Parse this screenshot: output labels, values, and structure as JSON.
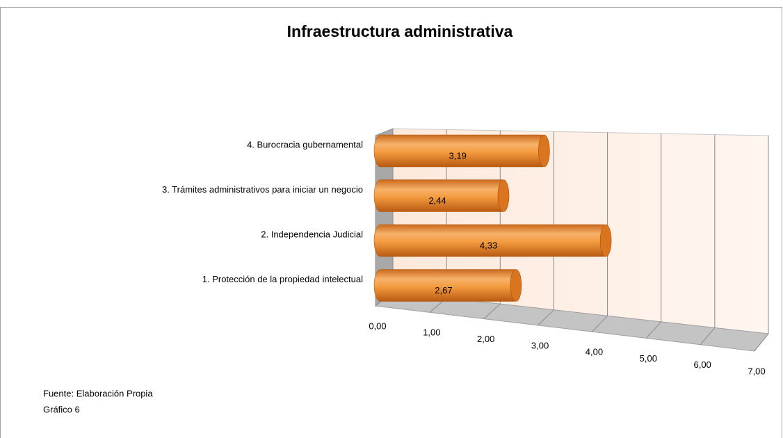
{
  "chart_data": {
    "type": "bar3d",
    "orientation": "horizontal",
    "title": "Infraestructura administrativa",
    "categories": [
      "1. Protección de la propiedad intelectual",
      "2. Independencia Judicial",
      "3. Trámites administrativos para iniciar un negocio",
      "4. Burocracia gubernamental"
    ],
    "values": [
      2.67,
      4.33,
      2.44,
      3.19
    ],
    "value_labels": [
      "2,67",
      "4,33",
      "2,44",
      "3,19"
    ],
    "color": "#f0923a",
    "xlim": [
      0,
      7
    ],
    "xticks": [
      {
        "value": 0,
        "label": "0,00"
      },
      {
        "value": 1,
        "label": "1,00"
      },
      {
        "value": 2,
        "label": "2,00"
      },
      {
        "value": 3,
        "label": "3,00"
      },
      {
        "value": 4,
        "label": "4,00"
      },
      {
        "value": 5,
        "label": "5,00"
      },
      {
        "value": 6,
        "label": "6,00"
      },
      {
        "value": 7,
        "label": "7,00"
      }
    ],
    "grid": true,
    "notes": [
      "Fuente: Elaboración Propia",
      "Gráfico 6"
    ]
  }
}
